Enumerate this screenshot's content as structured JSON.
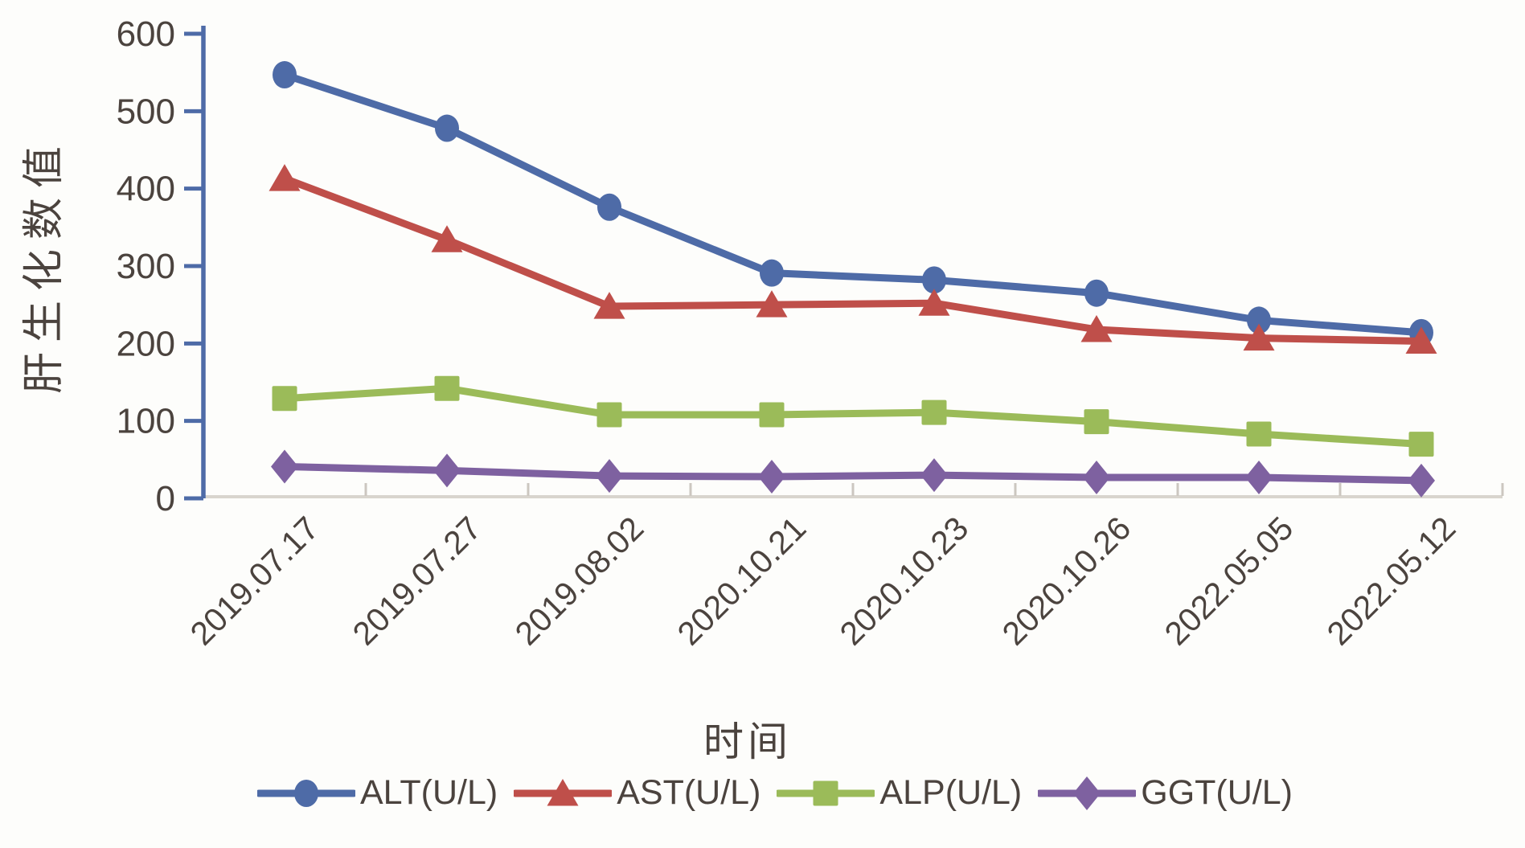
{
  "chart_data": {
    "type": "line",
    "title": "",
    "xlabel": "时间",
    "ylabel": "肝生化数值",
    "categories": [
      "2019.07.17",
      "2019.07.27",
      "2019.08.02",
      "2020.10.21",
      "2020.10.23",
      "2020.10.26",
      "2022.05.05",
      "2022.05.12"
    ],
    "series": [
      {
        "name": "ALT(U/L)",
        "marker": "circle",
        "color": "#4e6ba7",
        "values": [
          547,
          478,
          376,
          291,
          282,
          265,
          230,
          214
        ]
      },
      {
        "name": "AST(U/L)",
        "marker": "triangle",
        "color": "#bf4f4a",
        "values": [
          413,
          334,
          248,
          250,
          252,
          218,
          207,
          203
        ]
      },
      {
        "name": "ALP(U/L)",
        "marker": "square",
        "color": "#9bbb59",
        "values": [
          129,
          142,
          108,
          108,
          111,
          99,
          83,
          70
        ]
      },
      {
        "name": "GGT(U/L)",
        "marker": "diamond",
        "color": "#7e61a0",
        "values": [
          41,
          36,
          29,
          28,
          30,
          27,
          27,
          23
        ]
      }
    ],
    "ylim": [
      0,
      600
    ],
    "yticks": [
      0,
      100,
      200,
      300,
      400,
      500,
      600
    ],
    "grid": false,
    "legend_position": "bottom"
  },
  "colors": {
    "y_axis_line": "#4e6ba7",
    "x_axis_line": "#d9d5ce",
    "x_boundary_tick": "#ccc7c0",
    "text": "#4b433e",
    "background": "#fdfdfb"
  }
}
